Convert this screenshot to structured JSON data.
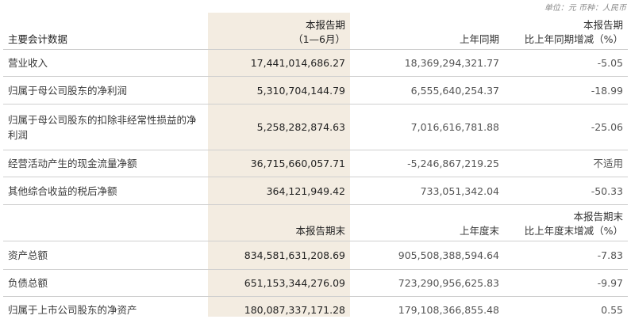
{
  "unit_note": "单位：元   币种：人民币",
  "header1": {
    "col1": "主要会计数据",
    "col2_line1": "本报告期",
    "col2_line2": "（1—6月）",
    "col3": "上年同期",
    "col4_line1": "本报告期",
    "col4_line2": "比上年同期增减（%）"
  },
  "rows1": [
    {
      "label": "营业收入",
      "current": "17,441,014,686.27",
      "prior": "18,369,294,321.77",
      "change": "-5.05"
    },
    {
      "label": "归属于母公司股东的净利润",
      "current": "5,310,704,144.79",
      "prior": "6,555,640,254.37",
      "change": "-18.99"
    },
    {
      "label": "归属于母公司股东的扣除非经常性损益的净利润",
      "current": "5,258,282,874.63",
      "prior": "7,016,616,781.88",
      "change": "-25.06"
    },
    {
      "label": "经营活动产生的现金流量净额",
      "current": "36,715,660,057.71",
      "prior": "-5,246,867,219.25",
      "change": "不适用"
    },
    {
      "label": "其他综合收益的税后净额",
      "current": "364,121,949.42",
      "prior": "733,051,342.04",
      "change": "-50.33"
    }
  ],
  "header2": {
    "col2": "本报告期末",
    "col3": "上年度末",
    "col4_line1": "本报告期末",
    "col4_line2": "比上年度末增减（%）"
  },
  "rows2": [
    {
      "label": "资产总额",
      "current": "834,581,631,208.69",
      "prior": "905,508,388,594.64",
      "change": "-7.83"
    },
    {
      "label": "负债总额",
      "current": "651,153,344,276.09",
      "prior": "723,290,956,625.83",
      "change": "-9.97"
    },
    {
      "label": "归属于上市公司股东的净资产",
      "current": "180,087,337,171.28",
      "prior": "179,108,366,855.48",
      "change": "0.55"
    }
  ]
}
